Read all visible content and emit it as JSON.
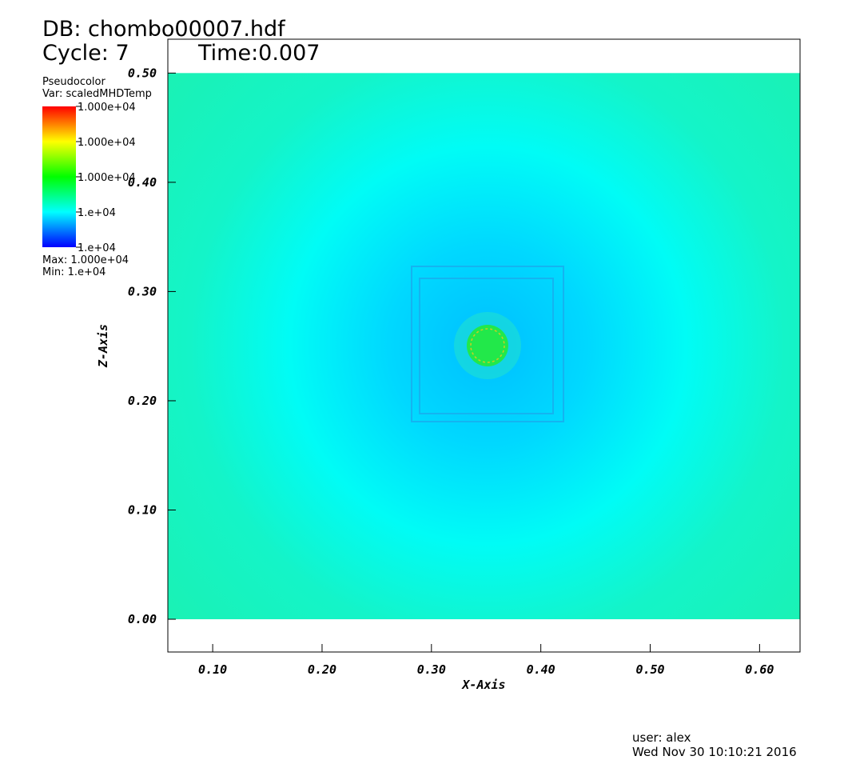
{
  "chart_data": {
    "type": "pseudocolor",
    "title": "DB: chombo00007.hdf",
    "cycle": "Cycle: 7",
    "time": "Time:0.007",
    "plot_name": "Pseudocolor",
    "variable": "Var: scaledMHDTemp",
    "colorbar": {
      "labels": [
        "1.000e+04",
        "1.000e+04",
        "1.000e+04",
        "1.e+04",
        "1.e+04"
      ],
      "colors": [
        "#ff0000",
        "#ffff00",
        "#00ff00",
        "#00ffff",
        "#0000ff"
      ]
    },
    "max_label": "Max:  1.000e+04",
    "min_label": "Min:  1.e+04",
    "xlabel": "X-Axis",
    "ylabel": "Z-Axis",
    "xlim": [
      0.059,
      0.637
    ],
    "ylim": [
      -0.03,
      0.531
    ],
    "xticks": [
      {
        "value": 0.1,
        "label": "0.10"
      },
      {
        "value": 0.2,
        "label": "0.20"
      },
      {
        "value": 0.3,
        "label": "0.30"
      },
      {
        "value": 0.4,
        "label": "0.40"
      },
      {
        "value": 0.5,
        "label": "0.50"
      },
      {
        "value": 0.6,
        "label": "0.60"
      }
    ],
    "yticks": [
      {
        "value": 0,
        "label": "0.00"
      },
      {
        "value": 0.1,
        "label": "0.10"
      },
      {
        "value": 0.2,
        "label": "0.20"
      },
      {
        "value": 0.3,
        "label": "0.30"
      },
      {
        "value": 0.4,
        "label": "0.40"
      },
      {
        "value": 0.5,
        "label": "0.50"
      }
    ],
    "field_x": [
      0.059,
      0.637
    ],
    "field_y": [
      0,
      0.5
    ],
    "user": "user: alex",
    "date": "Wed Nov 30 10:10:21 2016"
  }
}
